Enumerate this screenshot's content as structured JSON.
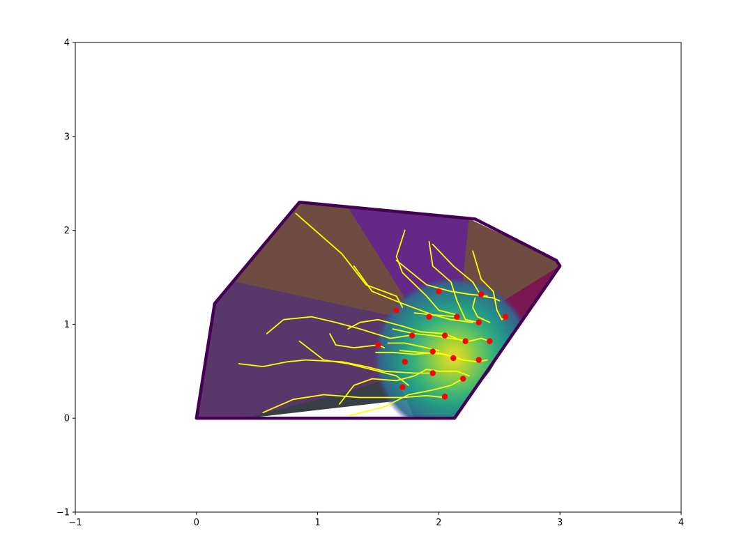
{
  "chart_data": {
    "type": "scatter",
    "title": "",
    "xlabel": "",
    "ylabel": "",
    "xlim": [
      -1,
      4
    ],
    "ylim": [
      -1,
      4
    ],
    "grid": false,
    "x_ticks": [
      -1,
      0,
      1,
      2,
      3,
      4
    ],
    "y_ticks": [
      -1,
      0,
      1,
      2,
      3,
      4
    ],
    "x_tick_labels": [
      "−1",
      "0",
      "1",
      "2",
      "3",
      "4"
    ],
    "y_tick_labels": [
      "−1",
      "0",
      "1",
      "2",
      "3",
      "4"
    ],
    "boundary": {
      "color": "#440154",
      "points": [
        [
          0,
          0
        ],
        [
          0.15,
          1.22
        ],
        [
          0.85,
          2.3
        ],
        [
          2.3,
          2.12
        ],
        [
          2.97,
          1.68
        ],
        [
          3.0,
          1.62
        ],
        [
          2.13,
          0
        ],
        [
          0,
          0
        ]
      ]
    },
    "regions": [
      {
        "color": "#6e4c42",
        "points": [
          [
            0.15,
            1.22
          ],
          [
            0.85,
            2.3
          ],
          [
            1.25,
            2.25
          ],
          [
            1.85,
            1.02
          ],
          [
            0.32,
            1.45
          ]
        ]
      },
      {
        "color": "#652886",
        "points": [
          [
            1.25,
            2.25
          ],
          [
            2.25,
            2.12
          ],
          [
            2.18,
            1.2
          ],
          [
            1.85,
            1.02
          ]
        ]
      },
      {
        "color": "#6e4c42",
        "points": [
          [
            2.25,
            2.12
          ],
          [
            2.97,
            1.68
          ],
          [
            3.0,
            1.62
          ],
          [
            2.45,
            1.18
          ],
          [
            2.18,
            1.2
          ]
        ]
      },
      {
        "color": "#7b1750",
        "points": [
          [
            3.0,
            1.62
          ],
          [
            2.45,
            1.18
          ],
          [
            2.58,
            0.85
          ],
          [
            2.8,
            1.22
          ]
        ]
      },
      {
        "color": "#5a376a",
        "points": [
          [
            0.32,
            1.45
          ],
          [
            1.85,
            1.02
          ],
          [
            1.65,
            0.45
          ],
          [
            1.25,
            0.28
          ],
          [
            0.4,
            0
          ]
        ]
      },
      {
        "color": "#5a376a",
        "points": [
          [
            0.15,
            1.22
          ],
          [
            0.32,
            1.45
          ],
          [
            0.4,
            0
          ],
          [
            0,
            0
          ]
        ]
      },
      {
        "color": "#393e46",
        "points": [
          [
            0.4,
            0
          ],
          [
            1.25,
            0.28
          ],
          [
            1.65,
            0.45
          ],
          [
            1.8,
            0
          ],
          [
            1.75,
            0.2
          ]
        ]
      },
      {
        "color": "#6b2a55",
        "points": [
          [
            1.75,
            0.2
          ],
          [
            1.8,
            0
          ],
          [
            2.13,
            0
          ],
          [
            2.2,
            0.15
          ],
          [
            2.0,
            0.22
          ]
        ]
      },
      {
        "color": "#3b5c8c",
        "points": [
          [
            1.85,
            1.02
          ],
          [
            2.18,
            1.2
          ],
          [
            2.45,
            1.18
          ],
          [
            2.58,
            0.85
          ],
          [
            2.42,
            0.5
          ],
          [
            2.2,
            0.15
          ],
          [
            1.75,
            0.2
          ],
          [
            1.65,
            0.45
          ]
        ]
      }
    ],
    "heat_center": [
      2.12,
      0.65
    ],
    "heat_colors": [
      "#fde725",
      "#b5de2b",
      "#6ece58",
      "#35b779",
      "#1f9e89",
      "#26828e",
      "#31688e",
      "#3e4a89"
    ],
    "trajectory_color": "#ffff00",
    "point_color": "#ff0000",
    "trajectories": [
      [
        [
          0.82,
          2.18
        ],
        [
          1.2,
          1.75
        ],
        [
          1.4,
          1.42
        ],
        [
          1.65,
          1.3
        ],
        [
          1.7,
          1.18
        ]
      ],
      [
        [
          1.3,
          1.62
        ],
        [
          1.45,
          1.35
        ],
        [
          1.7,
          1.22
        ],
        [
          1.95,
          1.1
        ],
        [
          2.15,
          1.08
        ]
      ],
      [
        [
          1.72,
          2.0
        ],
        [
          1.65,
          1.72
        ],
        [
          1.7,
          1.55
        ],
        [
          1.9,
          1.3
        ],
        [
          2.0,
          1.15
        ],
        [
          2.15,
          1.1
        ]
      ],
      [
        [
          1.92,
          1.88
        ],
        [
          1.95,
          1.62
        ],
        [
          2.1,
          1.45
        ],
        [
          2.15,
          1.25
        ],
        [
          2.22,
          1.05
        ],
        [
          2.33,
          1.02
        ]
      ],
      [
        [
          1.95,
          1.85
        ],
        [
          2.12,
          1.62
        ],
        [
          2.28,
          1.45
        ],
        [
          2.35,
          1.3
        ],
        [
          2.45,
          1.28
        ],
        [
          2.5,
          1.25
        ]
      ],
      [
        [
          2.28,
          1.78
        ],
        [
          2.35,
          1.48
        ],
        [
          2.45,
          1.35
        ],
        [
          2.48,
          1.15
        ],
        [
          2.52,
          1.05
        ],
        [
          2.55,
          1.08
        ]
      ],
      [
        [
          1.65,
          1.68
        ],
        [
          1.9,
          1.42
        ],
        [
          2.1,
          1.35
        ],
        [
          2.25,
          1.32
        ],
        [
          2.4,
          1.3
        ]
      ],
      [
        [
          0.58,
          0.9
        ],
        [
          0.72,
          1.05
        ],
        [
          0.95,
          1.08
        ],
        [
          1.15,
          1.02
        ],
        [
          1.35,
          0.95
        ],
        [
          1.6,
          0.85
        ],
        [
          1.75,
          0.88
        ]
      ],
      [
        [
          1.25,
          0.95
        ],
        [
          1.35,
          1.02
        ],
        [
          1.5,
          1.05
        ],
        [
          1.7,
          0.98
        ],
        [
          1.85,
          0.92
        ],
        [
          2.05,
          0.9
        ],
        [
          2.2,
          0.82
        ]
      ],
      [
        [
          1.62,
          0.95
        ],
        [
          1.8,
          0.9
        ],
        [
          1.95,
          0.88
        ],
        [
          2.1,
          0.85
        ],
        [
          2.25,
          0.82
        ],
        [
          2.35,
          0.85
        ],
        [
          2.42,
          0.82
        ]
      ],
      [
        [
          1.1,
          0.9
        ],
        [
          1.15,
          0.78
        ],
        [
          1.3,
          0.75
        ],
        [
          1.5,
          0.78
        ],
        [
          1.55,
          0.75
        ]
      ],
      [
        [
          0.35,
          0.58
        ],
        [
          0.55,
          0.55
        ],
        [
          0.75,
          0.6
        ],
        [
          0.9,
          0.62
        ],
        [
          1.2,
          0.6
        ],
        [
          1.4,
          0.55
        ],
        [
          1.55,
          0.5
        ],
        [
          1.8,
          0.48
        ],
        [
          1.97,
          0.48
        ]
      ],
      [
        [
          0.85,
          0.82
        ],
        [
          1.05,
          0.62
        ],
        [
          1.25,
          0.58
        ],
        [
          1.5,
          0.5
        ],
        [
          1.65,
          0.45
        ],
        [
          1.75,
          0.35
        ]
      ],
      [
        [
          1.18,
          0.15
        ],
        [
          1.3,
          0.35
        ],
        [
          1.45,
          0.42
        ],
        [
          1.65,
          0.4
        ],
        [
          1.8,
          0.45
        ],
        [
          1.9,
          0.52
        ],
        [
          2.0,
          0.5
        ],
        [
          2.15,
          0.5
        ],
        [
          2.25,
          0.45
        ]
      ],
      [
        [
          0.55,
          0.06
        ],
        [
          0.8,
          0.2
        ],
        [
          1.05,
          0.25
        ],
        [
          1.35,
          0.22
        ],
        [
          1.7,
          0.22
        ],
        [
          1.9,
          0.24
        ],
        [
          2.05,
          0.22
        ]
      ],
      [
        [
          1.27,
          0.03
        ],
        [
          1.55,
          0.12
        ],
        [
          1.75,
          0.25
        ],
        [
          1.95,
          0.3
        ],
        [
          2.1,
          0.35
        ],
        [
          2.2,
          0.42
        ]
      ],
      [
        [
          1.48,
          0.7
        ],
        [
          1.62,
          0.7
        ],
        [
          1.8,
          0.68
        ],
        [
          1.98,
          0.7
        ],
        [
          2.1,
          0.66
        ],
        [
          2.15,
          0.64
        ]
      ],
      [
        [
          1.68,
          0.72
        ],
        [
          1.85,
          0.7
        ],
        [
          2.05,
          0.68
        ],
        [
          2.2,
          0.62
        ],
        [
          2.32,
          0.6
        ],
        [
          2.4,
          0.62
        ]
      ],
      [
        [
          1.58,
          0.8
        ],
        [
          1.72,
          0.8
        ],
        [
          1.9,
          0.75
        ],
        [
          2.0,
          0.72
        ]
      ],
      [
        [
          1.8,
          1.12
        ],
        [
          1.95,
          1.1
        ],
        [
          2.1,
          1.05
        ],
        [
          2.28,
          1.02
        ]
      ],
      [
        [
          2.3,
          1.28
        ],
        [
          2.28,
          1.18
        ],
        [
          2.32,
          1.08
        ],
        [
          2.42,
          1.02
        ]
      ]
    ],
    "points": [
      [
        1.65,
        1.15
      ],
      [
        1.78,
        0.88
      ],
      [
        1.92,
        1.08
      ],
      [
        2.15,
        1.08
      ],
      [
        2.33,
        1.02
      ],
      [
        2.55,
        1.08
      ],
      [
        1.5,
        0.78
      ],
      [
        1.95,
        0.71
      ],
      [
        2.05,
        0.88
      ],
      [
        2.22,
        0.82
      ],
      [
        2.42,
        0.82
      ],
      [
        2.12,
        0.64
      ],
      [
        2.33,
        0.62
      ],
      [
        1.72,
        0.6
      ],
      [
        1.95,
        0.48
      ],
      [
        2.2,
        0.42
      ],
      [
        1.7,
        0.33
      ],
      [
        2.05,
        0.23
      ],
      [
        2.0,
        1.35
      ],
      [
        2.35,
        1.32
      ]
    ]
  }
}
